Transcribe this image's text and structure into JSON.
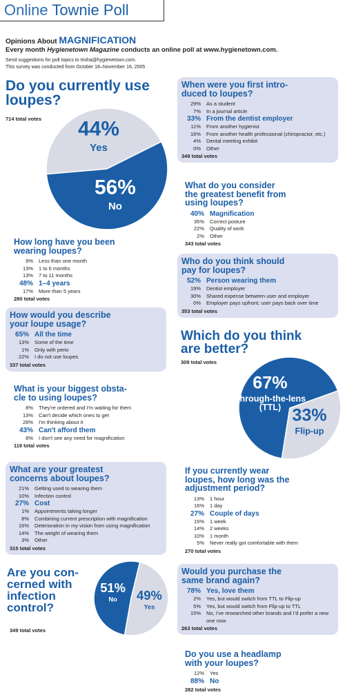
{
  "header": {
    "title_light": "Online",
    "title": "Townie Poll"
  },
  "intro": {
    "heading_a": "Opinions About",
    "heading_b": "MAGNIFICATION",
    "line_a": "Every month",
    "line_b": "Hygienetown Magazine",
    "line_c": "conducts an online poll at www.hygienetown.com.",
    "suggest": "Send suggestions for poll topics to trisha@hygienetown.com.",
    "dates": "This survey was conducted from October 18–November 16, 2005"
  },
  "chart_data": [
    {
      "type": "pie",
      "title": "Do you currently use\nloupes?",
      "note": "714 total votes",
      "categories": [
        "Yes",
        "No"
      ],
      "values": [
        44,
        56
      ],
      "value_labels": [
        "44%",
        "56%"
      ],
      "colors": [
        "#d8dbe6",
        "#1b5ea6"
      ]
    },
    {
      "type": "pie",
      "title": "Which do you think\nare better?",
      "note": "309 total votes",
      "categories": [
        "Through-the-lens\n(TTL)",
        "Flip-up"
      ],
      "values": [
        67,
        33
      ],
      "value_labels": [
        "67%",
        "33%"
      ],
      "colors": [
        "#1b5ea6",
        "#d8dbe6"
      ]
    },
    {
      "type": "pie",
      "title": "Are you con-\ncerned with\ninfection\ncontrol?",
      "note": "349 total votes",
      "categories": [
        "No",
        "Yes"
      ],
      "values": [
        51,
        49
      ],
      "value_labels": [
        "51%",
        "49%"
      ],
      "colors": [
        "#1b5ea6",
        "#d8dbe6"
      ]
    }
  ],
  "polls": [
    {
      "question": "When were you first intro-\nduced to loupes?",
      "items": [
        {
          "pct": "29%",
          "text": "As a student"
        },
        {
          "pct": "7%",
          "text": "In a journal article"
        },
        {
          "pct": "33%",
          "text": "From the dentist employer",
          "emphasis": true
        },
        {
          "pct": "11%",
          "text": "From another hygienist"
        },
        {
          "pct": "16%",
          "text": "From another health professional (chiropractor, etc.)"
        },
        {
          "pct": "4%",
          "text": "Dental meeting exhibit"
        },
        {
          "pct": "0%",
          "text": "Other"
        }
      ],
      "total": "349 total votes"
    },
    {
      "question": "What do you consider\nthe greatest benefit from\nusing loupes?",
      "items": [
        {
          "pct": "40%",
          "text": "Magnification",
          "emphasis": true
        },
        {
          "pct": "35%",
          "text": "Correct posture"
        },
        {
          "pct": "22%",
          "text": "Quality of work"
        },
        {
          "pct": "2%",
          "text": "Other"
        }
      ],
      "total": "343 total votes"
    },
    {
      "question": "Who do you think should\npay for loupes?",
      "items": [
        {
          "pct": "52%",
          "text": "Person wearing them",
          "emphasis": true
        },
        {
          "pct": "19%",
          "text": "Dentist employer"
        },
        {
          "pct": "30%",
          "text": "Shared expense between user and employer"
        },
        {
          "pct": "0%",
          "text": "Employer pays upfront; user pays back over time"
        }
      ],
      "total": "353 total votes"
    },
    {
      "question": "How long have you been\nwearing loupes?",
      "items": [
        {
          "pct": "9%",
          "text": "Less than one month"
        },
        {
          "pct": "13%",
          "text": "1 to 6 months"
        },
        {
          "pct": "13%",
          "text": "7 to 11 months"
        },
        {
          "pct": "48%",
          "text": "1–4 years",
          "emphasis": true
        },
        {
          "pct": "17%",
          "text": "More than 5 years"
        }
      ],
      "total": "280 total votes"
    },
    {
      "question": "How would you describe\nyour loupe usage?",
      "items": [
        {
          "pct": "65%",
          "text": "All the time",
          "emphasis": true
        },
        {
          "pct": "13%",
          "text": "Some of the time"
        },
        {
          "pct": "1%",
          "text": "Only with perio"
        },
        {
          "pct": "22%",
          "text": "I do not use loupes"
        }
      ],
      "total": "337 total votes"
    },
    {
      "question": "What is your biggest obsta-\ncle to using loupes?",
      "items": [
        {
          "pct": "8%",
          "text": "They're ordered and I'm waiting for them"
        },
        {
          "pct": "13%",
          "text": "Can't decide which ones to get"
        },
        {
          "pct": "28%",
          "text": "I'm thinking about it"
        },
        {
          "pct": "43%",
          "text": "Can't afford them",
          "emphasis": true
        },
        {
          "pct": "8%",
          "text": "I don't see any need for magnification"
        }
      ],
      "total": "119 total votes"
    },
    {
      "question": "What are your greatest\nconcerns about loupes?",
      "items": [
        {
          "pct": "21%",
          "text": "Getting used to wearing them"
        },
        {
          "pct": "10%",
          "text": "Infection control"
        },
        {
          "pct": "27%",
          "text": "Cost",
          "emphasis": true
        },
        {
          "pct": "1%",
          "text": "Appointments taking longer"
        },
        {
          "pct": "8%",
          "text": "Combining current prescription with magnification"
        },
        {
          "pct": "16%",
          "text": "Deterioration in my vision from using magnification"
        },
        {
          "pct": "14%",
          "text": "The weight of wearing them"
        },
        {
          "pct": "3%",
          "text": "Other"
        }
      ],
      "total": "315 total votes"
    },
    {
      "question": "If you currently wear\nloupes, how long was the\nadjustment period?",
      "items": [
        {
          "pct": "13%",
          "text": "1 hour"
        },
        {
          "pct": "16%",
          "text": "1 day"
        },
        {
          "pct": "27%",
          "text": "Couple of days",
          "emphasis": true
        },
        {
          "pct": "15%",
          "text": "1 week"
        },
        {
          "pct": "14%",
          "text": "2 weeks"
        },
        {
          "pct": "10%",
          "text": "1 month"
        },
        {
          "pct": "5%",
          "text": "Never really got comfortable with them"
        }
      ],
      "total": "270 total votes"
    },
    {
      "question": "Would you purchase the\nsame brand again?",
      "items": [
        {
          "pct": "78%",
          "text": "Yes, love them",
          "emphasis": true
        },
        {
          "pct": "2%",
          "text": "Yes, but would switch from TTL to Flip-up"
        },
        {
          "pct": "5%",
          "text": "Yes, but would switch from Flip-up to TTL"
        },
        {
          "pct": "15%",
          "text": "No, I've researched other brands and I'd prefer a new one now"
        }
      ],
      "total": "263 total votes"
    },
    {
      "question": "Do you use a headlamp\nwith your loupes?",
      "items": [
        {
          "pct": "12%",
          "text": "Yes"
        },
        {
          "pct": "88%",
          "text": "No",
          "emphasis": true
        }
      ],
      "total": "282 total votes"
    }
  ]
}
